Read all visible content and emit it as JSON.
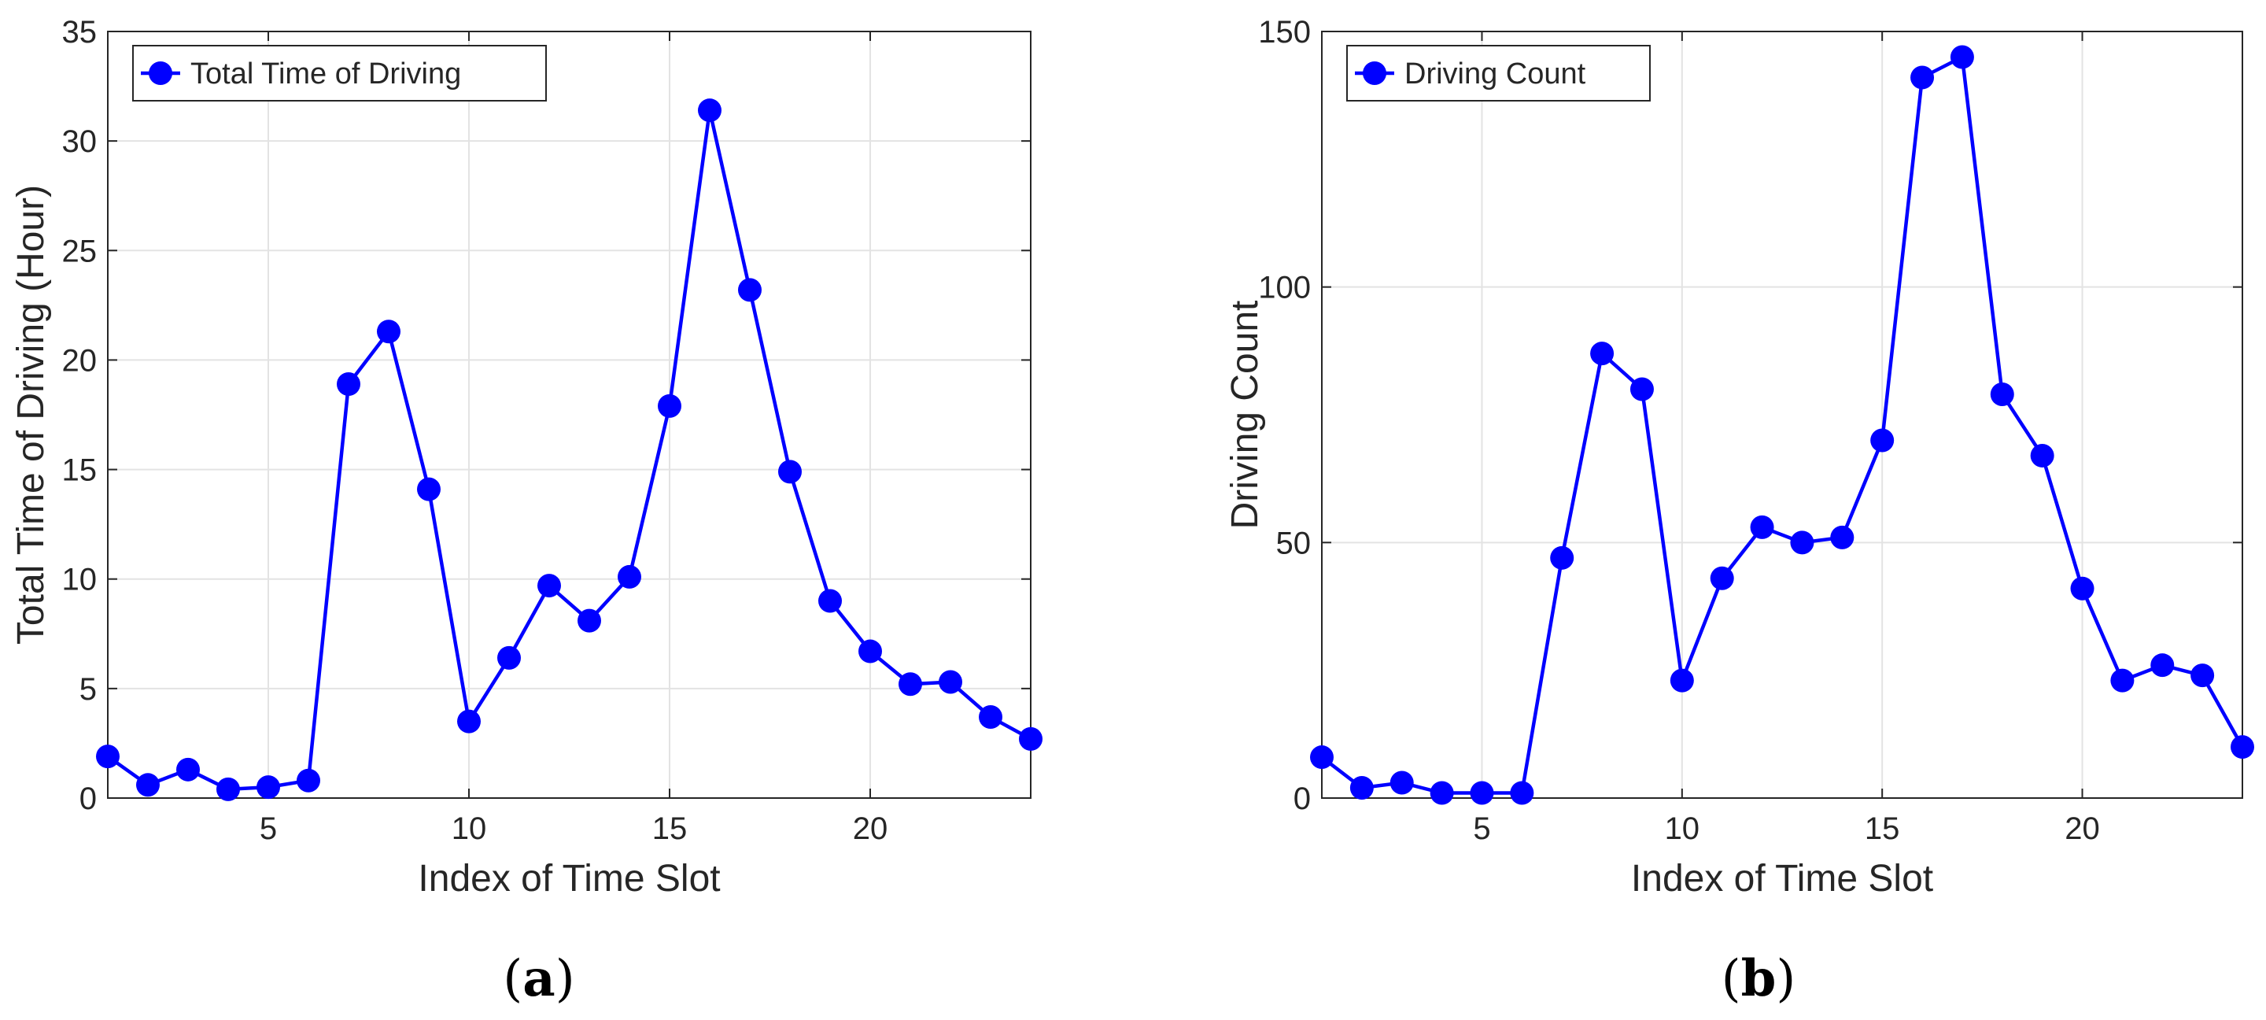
{
  "chart_data": [
    {
      "type": "line",
      "panel_label": "a",
      "x": [
        1,
        2,
        3,
        4,
        5,
        6,
        7,
        8,
        9,
        10,
        11,
        12,
        13,
        14,
        15,
        16,
        17,
        18,
        19,
        20,
        21,
        22,
        23,
        24
      ],
      "series": [
        {
          "name": "Total Time of Driving",
          "values": [
            1.9,
            0.6,
            1.3,
            0.4,
            0.5,
            0.8,
            18.9,
            21.3,
            14.1,
            3.5,
            6.4,
            9.7,
            8.1,
            10.1,
            17.9,
            31.4,
            23.2,
            14.9,
            9.0,
            6.7,
            5.2,
            5.3,
            3.7,
            2.7
          ]
        }
      ],
      "xlabel": "Index of Time Slot",
      "ylabel": "Total Time of Driving (Hour)",
      "xlim": [
        1,
        24
      ],
      "ylim": [
        0,
        35
      ],
      "xticks": [
        5,
        10,
        15,
        20
      ],
      "yticks": [
        0,
        5,
        10,
        15,
        20,
        25,
        30,
        35
      ],
      "grid": true,
      "legend_position": "top-left",
      "color": "#0000ff"
    },
    {
      "type": "line",
      "panel_label": "b",
      "x": [
        1,
        2,
        3,
        4,
        5,
        6,
        7,
        8,
        9,
        10,
        11,
        12,
        13,
        14,
        15,
        16,
        17,
        18,
        19,
        20,
        21,
        22,
        23,
        24
      ],
      "series": [
        {
          "name": "Driving Count",
          "values": [
            8,
            2,
            3,
            1,
            1,
            1,
            47,
            87,
            80,
            23,
            43,
            53,
            50,
            51,
            70,
            141,
            145,
            79,
            67,
            41,
            23,
            26,
            24,
            10
          ]
        }
      ],
      "xlabel": "Index of Time Slot",
      "ylabel": "Driving Count",
      "xlim": [
        1,
        24
      ],
      "ylim": [
        0,
        150
      ],
      "xticks": [
        5,
        10,
        15,
        20
      ],
      "yticks": [
        0,
        50,
        100,
        150
      ],
      "grid": true,
      "legend_position": "top-left",
      "color": "#0000ff"
    }
  ]
}
